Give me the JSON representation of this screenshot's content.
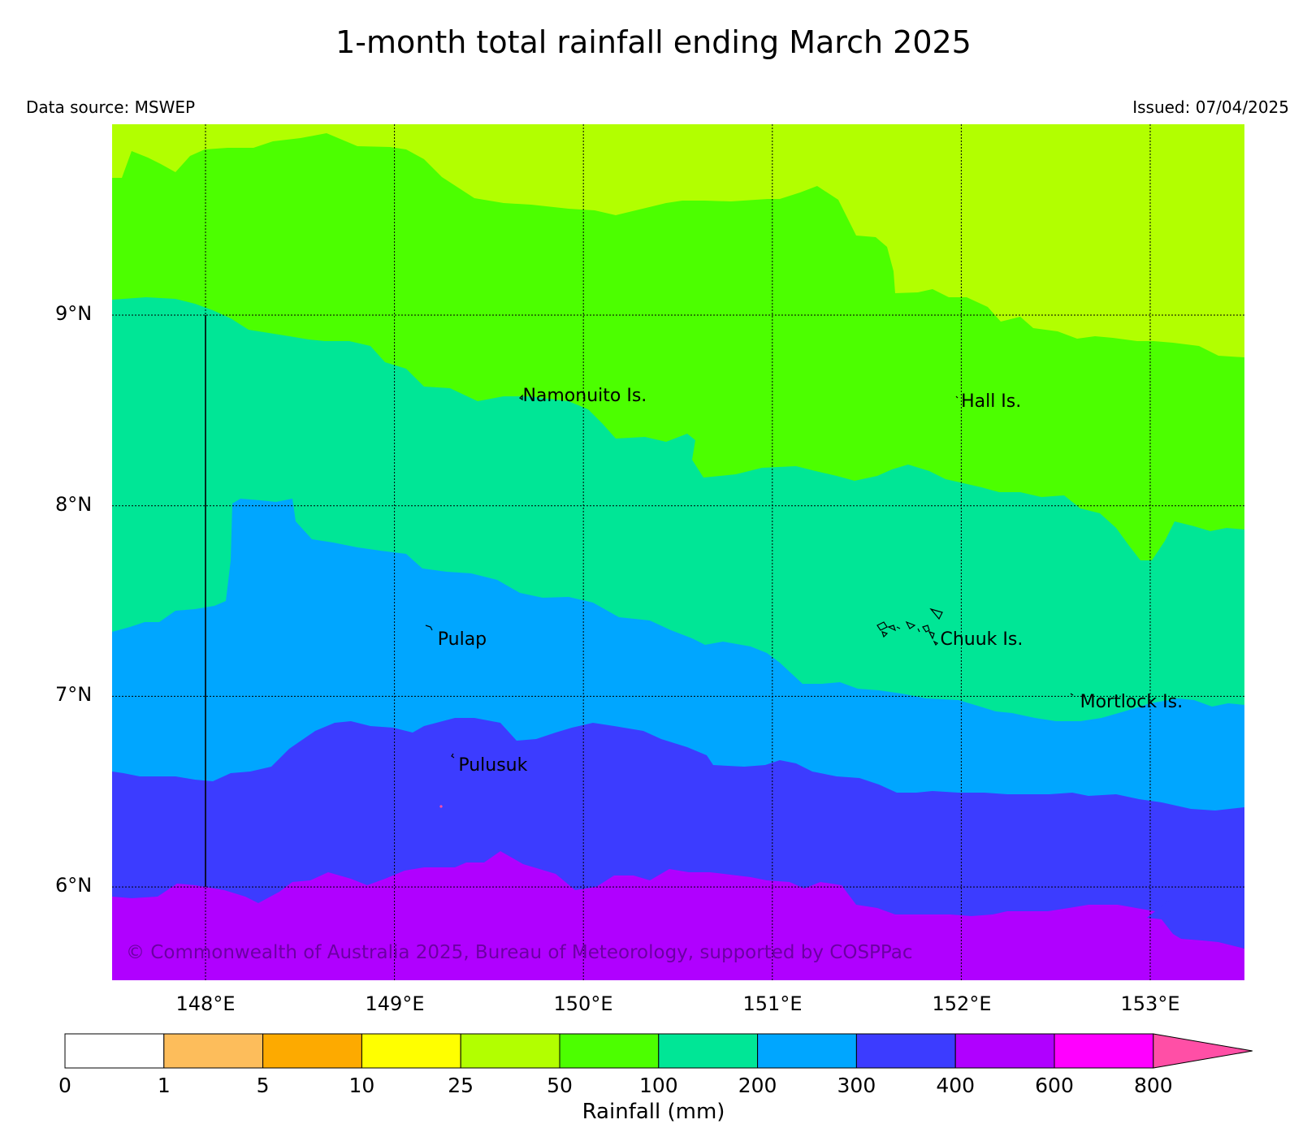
{
  "title": "1-month total rainfall ending March 2025",
  "data_source": "Data source: MSWEP",
  "issued": "Issued: 07/04/2025",
  "copyright": "© Commonwealth of Australia 2025, Bureau of Meteorology, supported by COSPPac",
  "lat_labels": [
    "9°N",
    "8°N",
    "7°N",
    "6°N"
  ],
  "lon_labels": [
    "148°E",
    "149°E",
    "150°E",
    "151°E",
    "152°E",
    "153°E"
  ],
  "places": [
    {
      "name": "Namonuito Is.",
      "lon": 149.67,
      "lat": 8.58
    },
    {
      "name": "Hall Is.",
      "lon": 151.99,
      "lat": 8.55
    },
    {
      "name": "Pulap",
      "lon": 149.22,
      "lat": 7.3
    },
    {
      "name": "Chuuk Is.",
      "lon": 151.88,
      "lat": 7.3
    },
    {
      "name": "Mortlock Is.",
      "lon": 152.62,
      "lat": 6.97
    },
    {
      "name": "Pulusuk",
      "lon": 149.33,
      "lat": 6.64
    }
  ],
  "colorbar": {
    "title": "Rainfall (mm)",
    "ticks": [
      "0",
      "1",
      "5",
      "10",
      "25",
      "50",
      "100",
      "200",
      "300",
      "400",
      "600",
      "800"
    ],
    "colors": [
      "#ffffff",
      "#fdbd5b",
      "#fdaa00",
      "#ffff00",
      "#b2ff00",
      "#4cff00",
      "#00e696",
      "#00a6ff",
      "#3c3cff",
      "#b000ff",
      "#ff00ff",
      "#ff4fa6"
    ]
  }
}
